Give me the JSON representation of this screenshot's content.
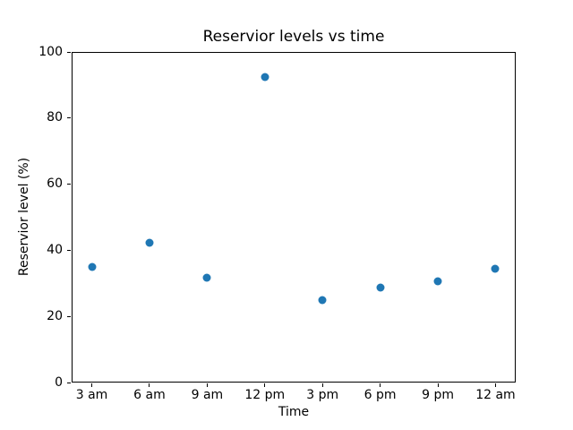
{
  "figure": {
    "title": "Reservior levels vs time",
    "xlabel": "Time",
    "ylabel": "Reservior level (%)"
  },
  "chart_data": {
    "type": "scatter",
    "title": "Reservior levels vs time",
    "xlabel": "Time",
    "ylabel": "Reservior level (%)",
    "categories": [
      "3 am",
      "6 am",
      "9 am",
      "12 pm",
      "3 pm",
      "6 pm",
      "9 pm",
      "12 am"
    ],
    "values": [
      35.0,
      42.3,
      31.7,
      92.4,
      25.0,
      28.6,
      30.7,
      34.4
    ],
    "ylim": [
      0,
      100
    ],
    "yticks": [
      0,
      20,
      40,
      60,
      80,
      100
    ],
    "ytick_labels": [
      "0",
      "20",
      "40",
      "60",
      "80",
      "100"
    ],
    "grid": false,
    "legend_position": "none",
    "marker_color": "#1f77b4",
    "axis_color": "#000000",
    "background_color": "#ffffff"
  }
}
